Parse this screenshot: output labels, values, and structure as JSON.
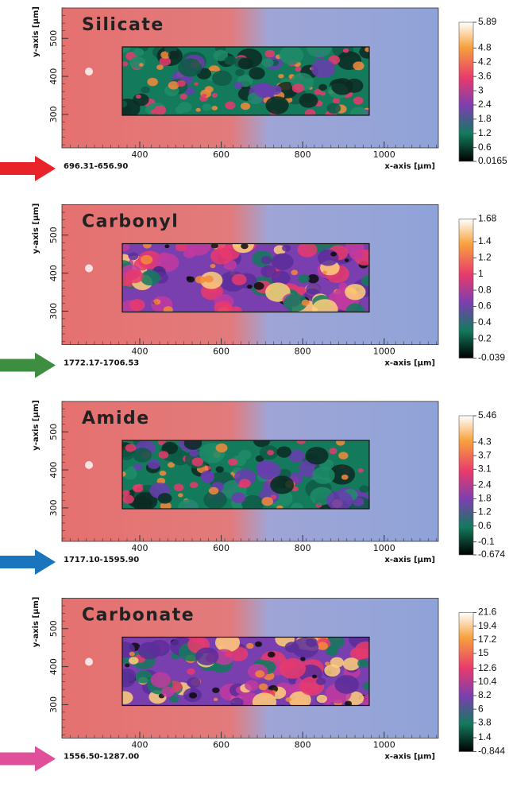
{
  "panels": [
    {
      "title": "Silicate",
      "range": "696.31-656.90",
      "arrow_color": "#e8232a",
      "x_label": "x-axis [µm]",
      "y_label": "y-axis [µm]",
      "xlim": [
        209,
        1133
      ],
      "ylim": [
        212,
        580
      ],
      "xticks": [
        400,
        600,
        800,
        1000
      ],
      "yticks": [
        300,
        400,
        500
      ],
      "colorbar_ticks": [
        5.89,
        4.8,
        4.2,
        3.6,
        3,
        2.4,
        1.8,
        1.2,
        0.6,
        0.0165
      ],
      "hot": false
    },
    {
      "title": "Carbonyl",
      "range": "1772.17-1706.53",
      "arrow_color": "#3e8e41",
      "x_label": "x-axis [µm]",
      "y_label": "y-axis [µm]",
      "xlim": [
        209,
        1133
      ],
      "ylim": [
        212,
        580
      ],
      "xticks": [
        400,
        600,
        800,
        1000
      ],
      "yticks": [
        300,
        400,
        500
      ],
      "colorbar_ticks": [
        1.68,
        1.4,
        1.2,
        1,
        0.8,
        0.6,
        0.4,
        0.2,
        -0.039
      ],
      "hot": true
    },
    {
      "title": "Amide",
      "range": "1717.10-1595.90",
      "arrow_color": "#1b75bc",
      "x_label": "x-axis [µm]",
      "y_label": "y-axis [µm]",
      "xlim": [
        209,
        1133
      ],
      "ylim": [
        212,
        580
      ],
      "xticks": [
        400,
        600,
        800,
        1000
      ],
      "yticks": [
        300,
        400,
        500
      ],
      "colorbar_ticks": [
        5.46,
        4.3,
        3.7,
        3.1,
        2.4,
        1.8,
        1.2,
        0.6,
        -0.1,
        -0.674
      ],
      "hot": false
    },
    {
      "title": "Carbonate",
      "range": "1556.50-1287.00",
      "arrow_color": "#e0509a",
      "x_label": "x-axis [µm]",
      "y_label": "y-axis [µm]",
      "xlim": [
        209,
        1133
      ],
      "ylim": [
        212,
        580
      ],
      "xticks": [
        400,
        600,
        800,
        1000
      ],
      "yticks": [
        300,
        400,
        500
      ],
      "colorbar_ticks": [
        21.6,
        19.4,
        17.2,
        15,
        12.6,
        10.4,
        8.2,
        6,
        3.8,
        1.4,
        -0.844
      ],
      "hot": true
    }
  ]
}
